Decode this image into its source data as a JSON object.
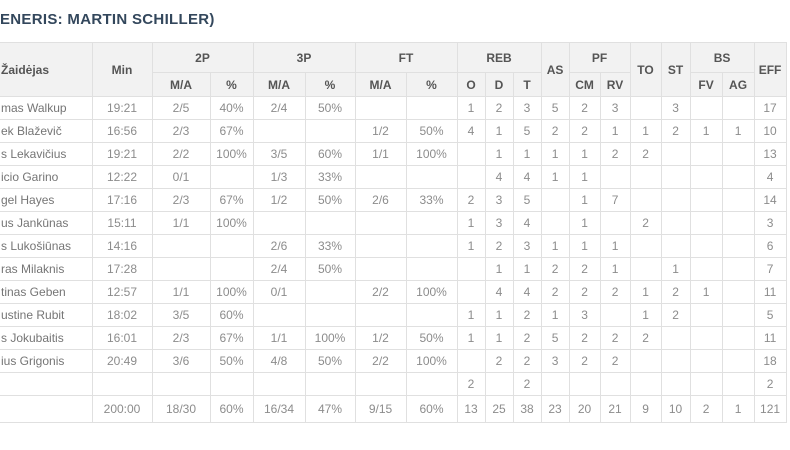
{
  "title": "ENERIS: MARTIN SCHILLER)",
  "table": {
    "header": {
      "player": "Žaidėjas",
      "min": "Min",
      "p2": "2P",
      "p3": "3P",
      "ft": "FT",
      "reb": "REB",
      "as": "AS",
      "pf": "PF",
      "to": "TO",
      "st": "ST",
      "bs": "BS",
      "eff": "EFF",
      "ma": "M/A",
      "pct": "%",
      "o": "O",
      "d": "D",
      "t": "T",
      "cm": "CM",
      "rv": "RV",
      "fv": "FV",
      "ag": "AG"
    },
    "rows": [
      [
        "mas Walkup",
        "19:21",
        "2/5",
        "40%",
        "2/4",
        "50%",
        "",
        "",
        "1",
        "2",
        "3",
        "5",
        "2",
        "3",
        "",
        "3",
        "",
        "",
        "17"
      ],
      [
        "ek Blaževič",
        "16:56",
        "2/3",
        "67%",
        "",
        "",
        "1/2",
        "50%",
        "4",
        "1",
        "5",
        "2",
        "2",
        "1",
        "1",
        "2",
        "1",
        "1",
        "10"
      ],
      [
        "s Lekavičius",
        "19:21",
        "2/2",
        "100%",
        "3/5",
        "60%",
        "1/1",
        "100%",
        "",
        "1",
        "1",
        "1",
        "1",
        "2",
        "2",
        "",
        "",
        "",
        "13"
      ],
      [
        "icio Garino",
        "12:22",
        "0/1",
        "",
        "1/3",
        "33%",
        "",
        "",
        "",
        "4",
        "4",
        "1",
        "1",
        "",
        "",
        "",
        "",
        "",
        "4"
      ],
      [
        "gel Hayes",
        "17:16",
        "2/3",
        "67%",
        "1/2",
        "50%",
        "2/6",
        "33%",
        "2",
        "3",
        "5",
        "",
        "1",
        "7",
        "",
        "",
        "",
        "",
        "14"
      ],
      [
        "us Jankūnas",
        "15:11",
        "1/1",
        "100%",
        "",
        "",
        "",
        "",
        "1",
        "3",
        "4",
        "",
        "1",
        "",
        "2",
        "",
        "",
        "",
        "3"
      ],
      [
        "s Lukošiūnas",
        "14:16",
        "",
        "",
        "2/6",
        "33%",
        "",
        "",
        "1",
        "2",
        "3",
        "1",
        "1",
        "1",
        "",
        "",
        "",
        "",
        "6"
      ],
      [
        "ras Milaknis",
        "17:28",
        "",
        "",
        "2/4",
        "50%",
        "",
        "",
        "",
        "1",
        "1",
        "2",
        "2",
        "1",
        "",
        "1",
        "",
        "",
        "7"
      ],
      [
        "tinas Geben",
        "12:57",
        "1/1",
        "100%",
        "0/1",
        "",
        "2/2",
        "100%",
        "",
        "4",
        "4",
        "2",
        "2",
        "2",
        "1",
        "2",
        "1",
        "",
        "11"
      ],
      [
        "ustine Rubit",
        "18:02",
        "3/5",
        "60%",
        "",
        "",
        "",
        "",
        "1",
        "1",
        "2",
        "1",
        "3",
        "",
        "1",
        "2",
        "",
        "",
        "5"
      ],
      [
        "s Jokubaitis",
        "16:01",
        "2/3",
        "67%",
        "1/1",
        "100%",
        "1/2",
        "50%",
        "1",
        "1",
        "2",
        "5",
        "2",
        "2",
        "2",
        "",
        "",
        "",
        "11"
      ],
      [
        "ius Grigonis",
        "20:49",
        "3/6",
        "50%",
        "4/8",
        "50%",
        "2/2",
        "100%",
        "",
        "2",
        "2",
        "3",
        "2",
        "2",
        "",
        "",
        "",
        "",
        "18"
      ],
      [
        "",
        "",
        "",
        "",
        "",
        "",
        "",
        "",
        "2",
        "",
        "2",
        "",
        "",
        "",
        "",
        "",
        "",
        "",
        "2"
      ]
    ],
    "totals": [
      "",
      "200:00",
      "18/30",
      "60%",
      "16/34",
      "47%",
      "9/15",
      "60%",
      "13",
      "25",
      "38",
      "23",
      "20",
      "21",
      "9",
      "10",
      "2",
      "1",
      "121"
    ]
  }
}
